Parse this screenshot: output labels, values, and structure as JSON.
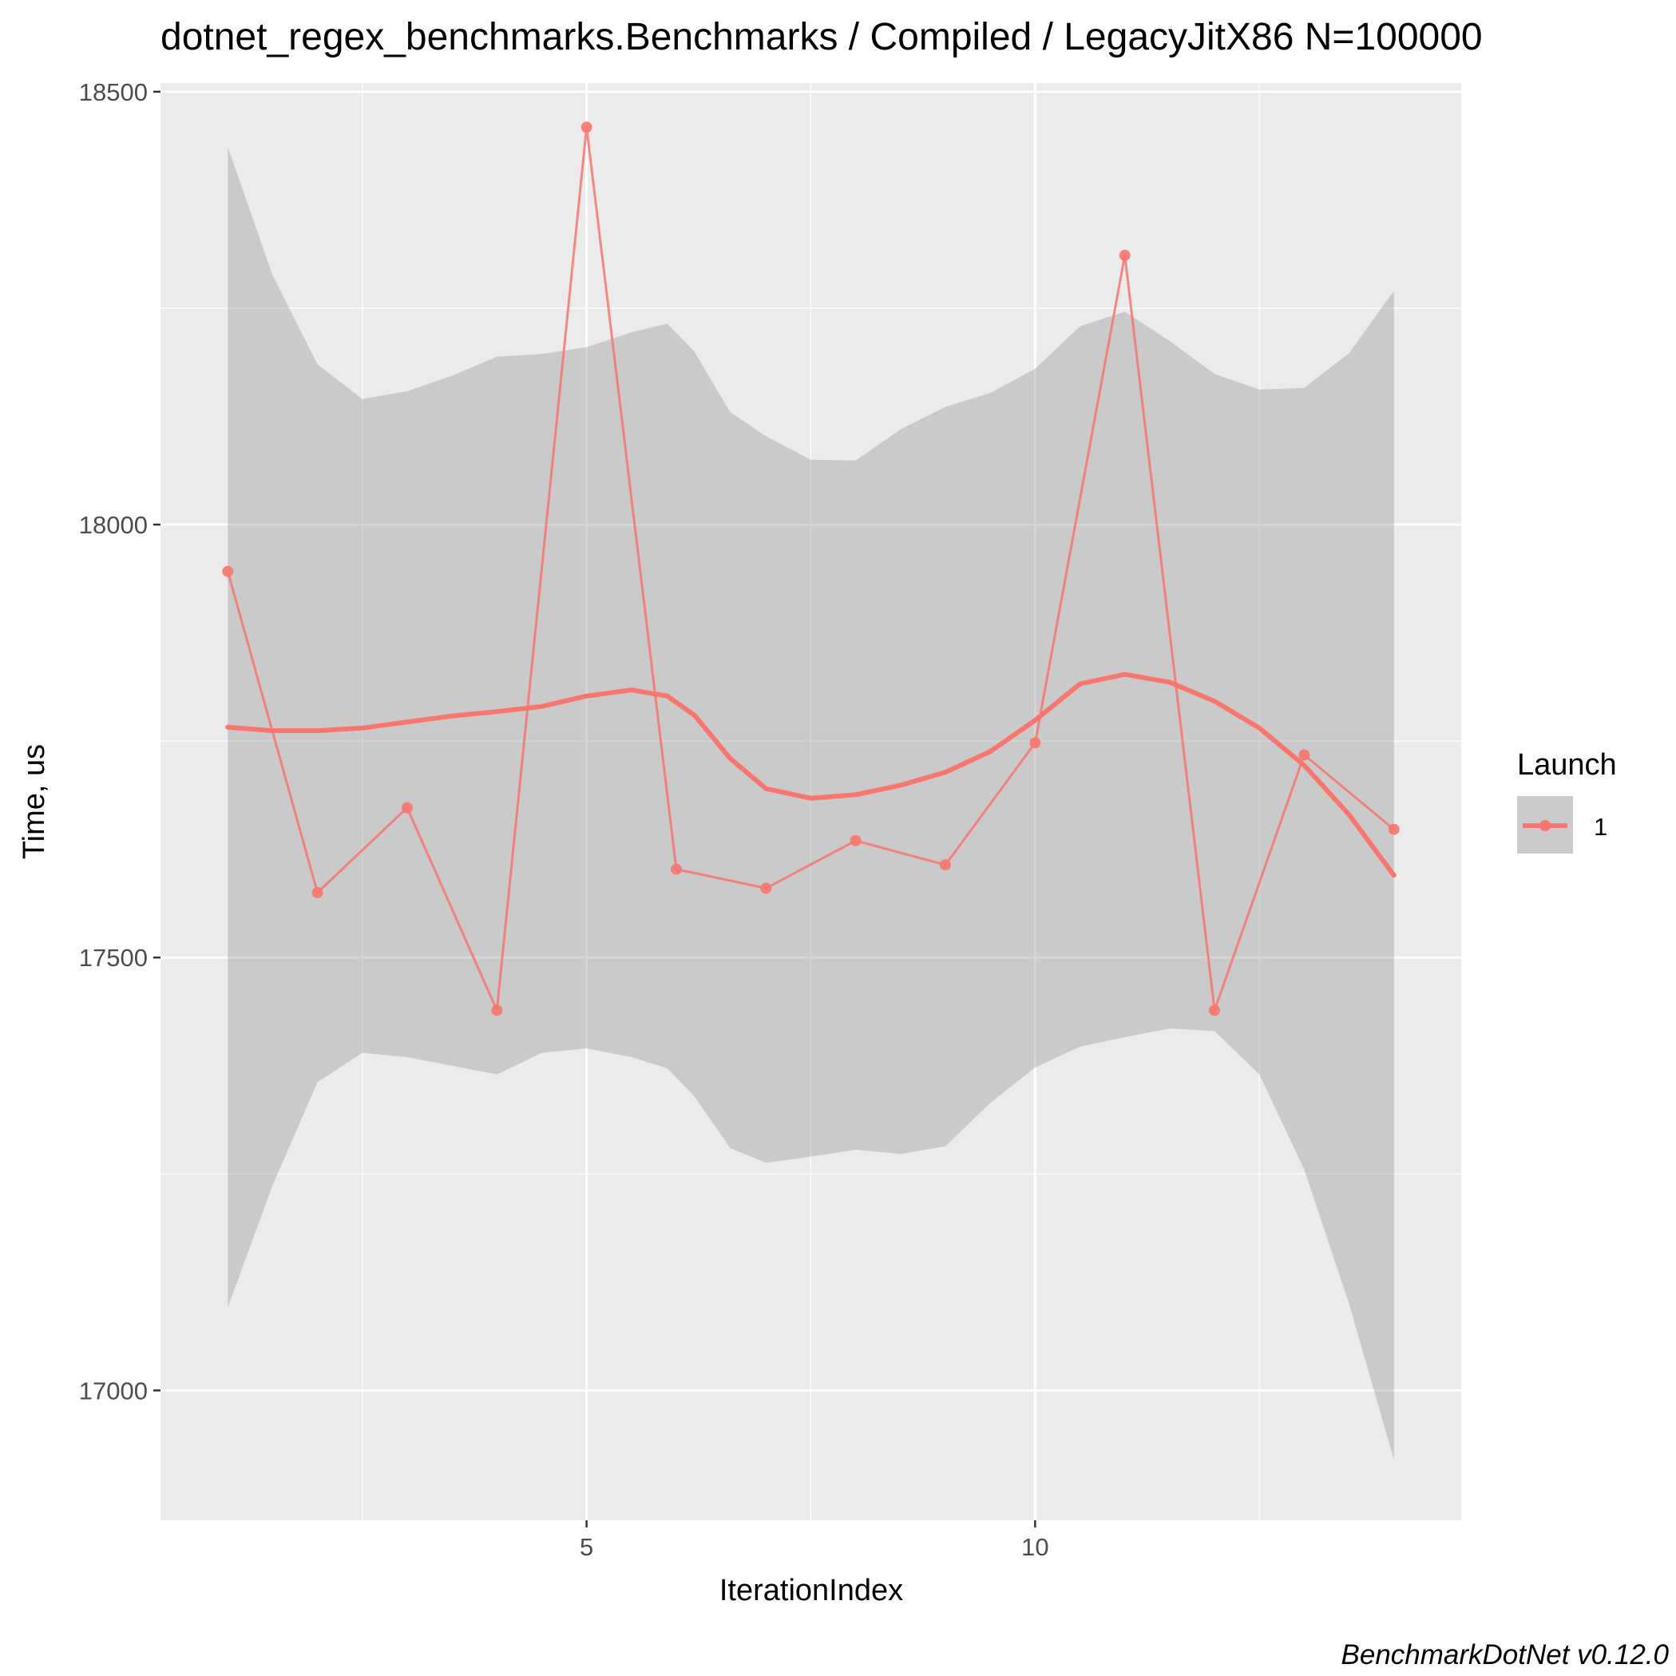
{
  "chart_data": {
    "type": "line",
    "title": "dotnet_regex_benchmarks.Benchmarks / Compiled / LegacyJitX86 N=100000",
    "xlabel": "IterationIndex",
    "ylabel": "Time, us",
    "caption": "BenchmarkDotNet v0.12.0",
    "xlim": [
      0.25,
      14.75
    ],
    "ylim": [
      16850,
      18510
    ],
    "x_ticks": [
      5,
      10
    ],
    "x_tick_labels": [
      "5",
      "10"
    ],
    "y_ticks": [
      17000,
      17500,
      18000,
      18500
    ],
    "y_tick_labels": [
      "17000",
      "17500",
      "18000",
      "18500"
    ],
    "grid": true,
    "legend": {
      "title": "Launch",
      "position": "right",
      "entries": [
        "1"
      ]
    },
    "colors": {
      "series": "#F8766D",
      "ribbon": "#999999",
      "panel": "#EBEBEB",
      "grid": "#FFFFFF"
    },
    "series": [
      {
        "name": "1",
        "x": [
          1,
          2,
          3,
          4,
          5,
          6,
          7,
          8,
          9,
          10,
          11,
          12,
          13,
          14
        ],
        "values": [
          17946,
          17575,
          17673,
          17439,
          18459,
          17602,
          17580,
          17635,
          17607,
          17748,
          18311,
          17439,
          17734,
          17648
        ]
      }
    ],
    "smooth": {
      "x": [
        1,
        1.5,
        2,
        2.5,
        3,
        3.5,
        4,
        4.5,
        5,
        5.5,
        5.9,
        6.2,
        6.6,
        7,
        7.5,
        8,
        8.5,
        9,
        9.5,
        10,
        10.5,
        11,
        11.5,
        12,
        12.5,
        13,
        13.5,
        14
      ],
      "y": [
        17766,
        17762,
        17762,
        17765,
        17772,
        17779,
        17784,
        17790,
        17802,
        17809,
        17802,
        17780,
        17730,
        17695,
        17684,
        17688,
        17699,
        17714,
        17738,
        17774,
        17816,
        17827,
        17818,
        17796,
        17765,
        17722,
        17665,
        17595
      ],
      "lower": [
        17096,
        17237,
        17356,
        17390,
        17385,
        17375,
        17365,
        17390,
        17395,
        17385,
        17372,
        17340,
        17280,
        17263,
        17270,
        17278,
        17273,
        17282,
        17332,
        17373,
        17397,
        17408,
        17418,
        17415,
        17365,
        17255,
        17100,
        16920
      ],
      "upper": [
        18436,
        18288,
        18185,
        18145,
        18154,
        18172,
        18194,
        18197,
        18205,
        18222,
        18232,
        18200,
        18130,
        18102,
        18075,
        18074,
        18110,
        18136,
        18152,
        18180,
        18229,
        18246,
        18212,
        18174,
        18156,
        18158,
        18198,
        18270
      ]
    }
  }
}
